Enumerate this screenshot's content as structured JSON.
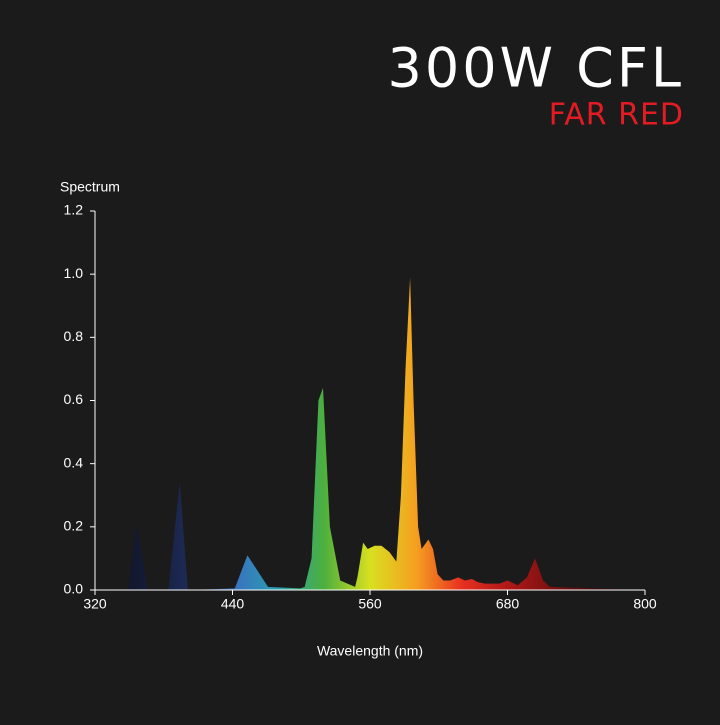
{
  "chart_data": {
    "type": "area",
    "title": "300W CFL",
    "subtitle": "FAR RED",
    "y_label": "Spectrum",
    "x_label": "Wavelength (nm)",
    "xlim": [
      320,
      800
    ],
    "ylim": [
      0,
      1.2
    ],
    "xticks": [
      320,
      440,
      560,
      680,
      800
    ],
    "yticks": [
      {
        "value": 0,
        "label": "0.0"
      },
      0.2,
      0.4,
      0.6,
      0.8,
      {
        "value": 1,
        "label": "1.0"
      },
      1.2
    ],
    "color_stops": [
      "#0c1020",
      "#141a33",
      "#1d2a55",
      "#3a6fc0",
      "#2a9fb0",
      "#4caf3c",
      "#d8e020",
      "#f5a020",
      "#e83020",
      "#b01818",
      "#7a1010",
      "#3a0d0d",
      "#222222"
    ],
    "x": [
      320,
      349,
      356,
      366,
      384,
      394,
      401,
      442,
      453,
      471,
      499,
      503,
      509,
      515,
      519,
      525,
      534,
      547,
      549,
      554,
      558,
      564,
      570,
      577,
      583,
      587,
      591,
      595,
      598,
      602,
      605,
      611,
      615,
      619,
      624,
      630,
      637,
      643,
      649,
      654,
      660,
      673,
      680,
      689,
      697,
      704,
      711,
      717,
      761,
      800
    ],
    "values": [
      0,
      0,
      0.21,
      0,
      0,
      0.34,
      0,
      0.005,
      0.11,
      0.01,
      0.005,
      0.01,
      0.1,
      0.6,
      0.64,
      0.2,
      0.03,
      0.01,
      0.04,
      0.15,
      0.13,
      0.14,
      0.14,
      0.12,
      0.09,
      0.3,
      0.7,
      0.99,
      0.6,
      0.2,
      0.13,
      0.16,
      0.13,
      0.05,
      0.03,
      0.03,
      0.04,
      0.03,
      0.035,
      0.025,
      0.02,
      0.02,
      0.03,
      0.015,
      0.04,
      0.1,
      0.03,
      0.01,
      0.005,
      0
    ]
  }
}
